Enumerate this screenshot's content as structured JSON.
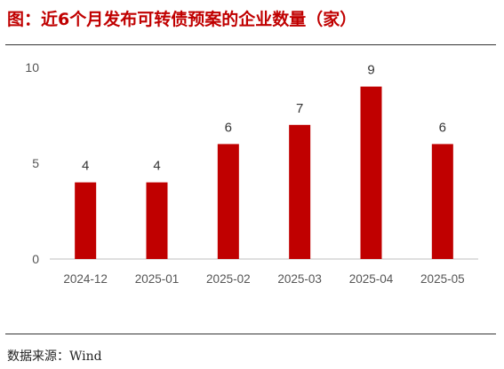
{
  "title": "图：近6个月发布可转债预案的企业数量（家）",
  "source_prefix": "数据来源：",
  "source_name": "Wind",
  "colors": {
    "bar": "#c00000",
    "title": "#c00000",
    "axis": "#bfbfbf",
    "tick_text": "#555555"
  },
  "chart_data": {
    "type": "bar",
    "title": "图：近6个月发布可转债预案的企业数量（家）",
    "xlabel": "",
    "ylabel": "",
    "categories": [
      "2024-12",
      "2025-01",
      "2025-02",
      "2025-03",
      "2025-04",
      "2025-05"
    ],
    "series": [
      {
        "values": [
          4,
          4,
          6,
          7,
          9,
          6
        ]
      }
    ],
    "ylim": [
      0,
      10
    ],
    "yticks": [
      0,
      5,
      10
    ],
    "data_labels": true,
    "grid": false,
    "legend": false
  }
}
